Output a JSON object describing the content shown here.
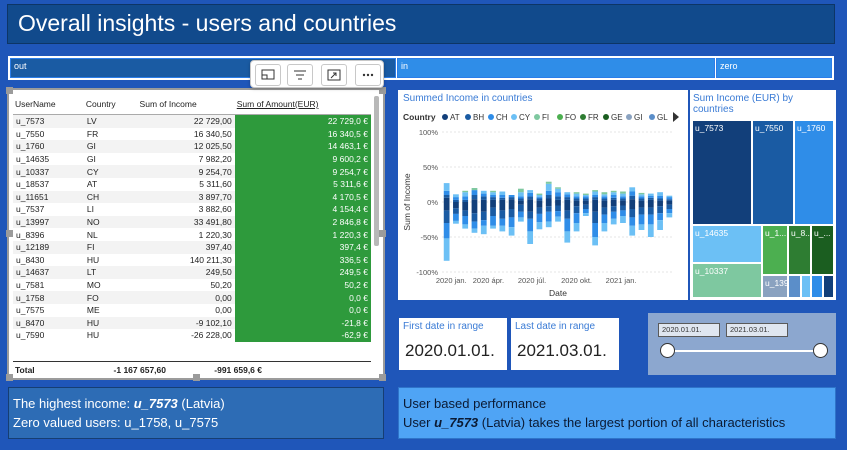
{
  "title": "Overall insights - users and countries",
  "filter_strip": {
    "out": "out",
    "in": "in",
    "zero": "zero"
  },
  "toolbar_icons": [
    "focus-mode-icon",
    "filter-icon",
    "expand-icon",
    "more-options-icon"
  ],
  "table": {
    "headers": [
      "UserName",
      "Country",
      "Sum of Income",
      "Sum of Amount(EUR)"
    ],
    "rows": [
      [
        "u_7573",
        "LV",
        "22 729,00",
        "22 729,0 €"
      ],
      [
        "u_7550",
        "FR",
        "16 340,50",
        "16 340,5 €"
      ],
      [
        "u_1760",
        "GI",
        "12 025,50",
        "14 463,1 €"
      ],
      [
        "u_14635",
        "GI",
        "7 982,20",
        "9 600,2 €"
      ],
      [
        "u_10337",
        "CY",
        "9 254,70",
        "9 254,7 €"
      ],
      [
        "u_18537",
        "AT",
        "5 311,60",
        "5 311,6 €"
      ],
      [
        "u_11651",
        "CH",
        "3 897,70",
        "4 170,5 €"
      ],
      [
        "u_7537",
        "LI",
        "3 882,60",
        "4 154,4 €"
      ],
      [
        "u_13997",
        "NO",
        "33 491,80",
        "2 846,8 €"
      ],
      [
        "u_8396",
        "NL",
        "1 220,30",
        "1 220,3 €"
      ],
      [
        "u_12189",
        "FI",
        "397,40",
        "397,4 €"
      ],
      [
        "u_8430",
        "HU",
        "140 211,30",
        "336,5 €"
      ],
      [
        "u_14637",
        "LT",
        "249,50",
        "249,5 €"
      ],
      [
        "u_7581",
        "MO",
        "50,20",
        "50,2 €"
      ],
      [
        "u_1758",
        "FO",
        "0,00",
        "0,0 €"
      ],
      [
        "u_7575",
        "ME",
        "0,00",
        "0,0 €"
      ],
      [
        "u_8470",
        "HU",
        "-9 102,10",
        "-21,8 €"
      ],
      [
        "u_7590",
        "HU",
        "-26 228,00",
        "-62,9 €"
      ]
    ],
    "total": [
      "Total",
      "",
      "-1 167 657,60",
      "-991 659,6 €"
    ]
  },
  "chart_data": {
    "type": "bar",
    "stacking": "100%",
    "title": "Summed Income in countries",
    "xlabel": "Date",
    "ylabel": "Sum of Income",
    "legend_title": "Country",
    "legend_position": "top",
    "legend": [
      {
        "name": "AT",
        "color": "#123f7a"
      },
      {
        "name": "BH",
        "color": "#1a5ba3"
      },
      {
        "name": "CH",
        "color": "#2f8de8"
      },
      {
        "name": "CY",
        "color": "#6cc0f5"
      },
      {
        "name": "FI",
        "color": "#7ec8a0"
      },
      {
        "name": "FO",
        "color": "#4caf50"
      },
      {
        "name": "FR",
        "color": "#2e7d32"
      },
      {
        "name": "GE",
        "color": "#1b5e20"
      },
      {
        "name": "GI",
        "color": "#8aa2c0"
      },
      {
        "name": "GL",
        "color": "#5b8ec9"
      }
    ],
    "yticks": [
      "100%",
      "50%",
      "0%",
      "-50%",
      "-100%"
    ],
    "ylim": [
      -100,
      100
    ],
    "xticks": [
      "2020 jan.",
      "2020 ápr.",
      "2020 júl.",
      "2020 okt.",
      "2021 jan."
    ],
    "series_colors": [
      "#123f7a",
      "#1a5ba3",
      "#2f8de8",
      "#6cc0f5",
      "#7ec8a0",
      "#4caf50",
      "#2e7d32",
      "#8aa2c0"
    ],
    "bars": [
      {
        "pos": [
          6,
          4,
          6,
          11,
          0,
          0,
          0,
          0
        ],
        "neg": [
          -12,
          -18,
          -22,
          -32,
          0,
          0,
          0,
          0
        ]
      },
      {
        "pos": [
          0,
          3,
          4,
          4,
          0,
          0,
          0,
          0
        ],
        "neg": [
          -9,
          -8,
          -10,
          -4,
          0,
          0,
          0,
          0
        ]
      },
      {
        "pos": [
          0,
          3,
          5,
          6,
          2,
          0,
          0,
          0
        ],
        "neg": [
          -12,
          -8,
          -12,
          -6,
          0,
          0,
          0,
          0
        ]
      },
      {
        "pos": [
          4,
          6,
          7,
          0,
          3,
          0,
          0,
          0
        ],
        "neg": [
          -16,
          -12,
          -10,
          -6,
          0,
          0,
          0,
          0
        ]
      },
      {
        "pos": [
          3,
          5,
          4,
          4,
          0,
          0,
          0,
          0
        ],
        "neg": [
          -14,
          -12,
          -8,
          -12,
          0,
          0,
          0,
          0
        ]
      },
      {
        "pos": [
          3,
          4,
          3,
          4,
          2,
          0,
          0,
          0
        ],
        "neg": [
          -8,
          -12,
          -14,
          -4,
          0,
          0,
          0,
          0
        ]
      },
      {
        "pos": [
          3,
          3,
          4,
          5,
          0,
          0,
          0,
          0
        ],
        "neg": [
          -12,
          -12,
          -10,
          -8,
          0,
          0,
          0,
          0
        ]
      },
      {
        "pos": [
          4,
          3,
          3,
          0,
          0,
          0,
          0,
          0
        ],
        "neg": [
          -10,
          -12,
          -14,
          -12,
          0,
          0,
          0,
          0
        ]
      },
      {
        "pos": [
          2,
          3,
          3,
          6,
          5,
          0,
          0,
          0
        ],
        "neg": [
          -4,
          -10,
          -8,
          -6,
          0,
          0,
          0,
          0
        ]
      },
      {
        "pos": [
          4,
          4,
          5,
          4,
          0,
          0,
          0,
          0
        ],
        "neg": [
          -14,
          -10,
          -18,
          -18,
          0,
          0,
          0,
          0
        ]
      },
      {
        "pos": [
          2,
          3,
          2,
          3,
          2,
          0,
          0,
          0
        ],
        "neg": [
          -8,
          -9,
          -12,
          -10,
          0,
          0,
          0,
          0
        ]
      },
      {
        "pos": [
          5,
          5,
          6,
          10,
          3,
          0,
          0,
          0
        ],
        "neg": [
          -6,
          -8,
          -14,
          -8,
          0,
          0,
          0,
          0
        ]
      },
      {
        "pos": [
          3,
          5,
          6,
          5,
          2,
          0,
          0,
          0
        ],
        "neg": [
          -5,
          -8,
          -8,
          -7,
          0,
          0,
          0,
          0
        ]
      },
      {
        "pos": [
          3,
          4,
          4,
          3,
          0,
          0,
          0,
          0
        ],
        "neg": [
          -12,
          -12,
          -18,
          -16,
          0,
          0,
          0,
          0
        ]
      },
      {
        "pos": [
          2,
          3,
          3,
          4,
          2,
          0,
          0,
          0
        ],
        "neg": [
          -6,
          -10,
          -14,
          -12,
          0,
          0,
          0,
          0
        ]
      },
      {
        "pos": [
          2,
          3,
          3,
          2,
          2,
          0,
          0,
          0
        ],
        "neg": [
          -4,
          -6,
          -6,
          -4,
          0,
          0,
          0,
          0
        ]
      },
      {
        "pos": [
          3,
          4,
          3,
          5,
          2,
          0,
          0,
          0
        ],
        "neg": [
          -14,
          -16,
          -20,
          -12,
          0,
          0,
          0,
          0
        ]
      },
      {
        "pos": [
          2,
          3,
          3,
          3,
          3,
          0,
          0,
          0
        ],
        "neg": [
          -8,
          -10,
          -12,
          -12,
          0,
          0,
          0,
          0
        ]
      },
      {
        "pos": [
          3,
          3,
          4,
          4,
          2,
          0,
          0,
          0
        ],
        "neg": [
          -6,
          -8,
          -10,
          -8,
          0,
          0,
          0,
          0
        ]
      },
      {
        "pos": [
          2,
          3,
          3,
          4,
          3,
          0,
          0,
          0
        ],
        "neg": [
          -5,
          -7,
          -8,
          -10,
          0,
          0,
          0,
          0
        ]
      },
      {
        "pos": [
          4,
          5,
          6,
          6,
          0,
          0,
          0,
          0
        ],
        "neg": [
          -10,
          -12,
          -12,
          -14,
          0,
          0,
          0,
          0
        ]
      },
      {
        "pos": [
          2,
          3,
          3,
          3,
          2,
          0,
          0,
          0
        ],
        "neg": [
          -8,
          -10,
          -14,
          -8,
          0,
          0,
          0,
          0
        ]
      },
      {
        "pos": [
          3,
          3,
          3,
          3,
          0,
          0,
          0,
          0
        ],
        "neg": [
          -8,
          -10,
          -14,
          -18,
          0,
          0,
          0,
          0
        ]
      },
      {
        "pos": [
          2,
          3,
          4,
          5,
          0,
          0,
          0,
          0
        ],
        "neg": [
          -6,
          -10,
          -10,
          -14,
          0,
          0,
          0,
          0
        ]
      },
      {
        "pos": [
          2,
          2,
          3,
          2,
          0,
          0,
          0,
          0
        ],
        "neg": [
          -4,
          -6,
          -6,
          -6,
          0,
          0,
          0,
          0
        ]
      }
    ]
  },
  "treemap": {
    "title": "Sum Income (EUR) by countries",
    "cells": [
      {
        "label": "u_7573",
        "color": "#123f7a"
      },
      {
        "label": "u_7550",
        "color": "#1a5ba3"
      },
      {
        "label": "u_1760",
        "color": "#2f8de8"
      },
      {
        "label": "u_14635",
        "color": "#6cc0f5"
      },
      {
        "label": "u_1...",
        "color": "#4caf50"
      },
      {
        "label": "u_8...",
        "color": "#2e7d32"
      },
      {
        "label": "u_...",
        "color": "#1b5e20"
      },
      {
        "label": "u_10337",
        "color": "#7ec8a0"
      },
      {
        "label": "u_139...",
        "color": "#8aa2c0"
      },
      {
        "label": "",
        "color": "#5b8ec9"
      },
      {
        "label": "",
        "color": "#6cc0f5"
      },
      {
        "label": "",
        "color": "#2f8de8"
      },
      {
        "label": "",
        "color": "#123f7a"
      }
    ]
  },
  "date_range": {
    "first_label": "First date in range",
    "first_value": "2020.01.01.",
    "last_label": "Last date in range",
    "last_value": "2021.03.01."
  },
  "slider": {
    "start": "2020.01.01.",
    "end": "2021.03.01."
  },
  "info_left": {
    "line1_prefix": "The highest income: ",
    "line1_user": "u_7573",
    "line1_suffix": " (Latvia)",
    "line2": "Zero valued users: u_1758, u_7575"
  },
  "info_right": {
    "line1": "User based performance",
    "line2_prefix": "User ",
    "line2_user": "u_7573",
    "line2_suffix": " (Latvia) takes the largest portion of all characteristics"
  }
}
